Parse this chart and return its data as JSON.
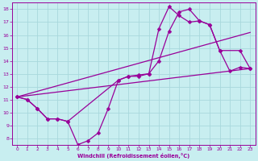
{
  "xlabel": "Windchill (Refroidissement éolien,°C)",
  "bg_color": "#c8eef0",
  "grid_color": "#a8d8dc",
  "line_color": "#990099",
  "xlim": [
    -0.5,
    23.5
  ],
  "ylim": [
    7.5,
    18.5
  ],
  "yticks": [
    8,
    9,
    10,
    11,
    12,
    13,
    14,
    15,
    16,
    17,
    18
  ],
  "xticks": [
    0,
    1,
    2,
    3,
    4,
    5,
    6,
    7,
    8,
    9,
    10,
    11,
    12,
    13,
    14,
    15,
    16,
    17,
    18,
    19,
    20,
    21,
    22,
    23
  ],
  "line1_x": [
    0,
    1,
    2,
    3,
    4,
    5,
    6,
    7,
    8,
    9,
    10,
    11,
    12,
    13,
    14,
    15,
    16,
    17,
    18,
    19,
    20,
    21,
    22,
    23
  ],
  "line1_y": [
    11.2,
    11.0,
    10.3,
    9.5,
    9.5,
    9.3,
    7.5,
    7.8,
    8.4,
    10.3,
    12.5,
    12.8,
    12.8,
    13.0,
    16.5,
    18.2,
    17.5,
    17.0,
    17.1,
    16.8,
    14.8,
    13.2,
    13.5,
    13.4
  ],
  "line2_x": [
    0,
    1,
    2,
    3,
    4,
    5,
    10,
    11,
    12,
    13,
    14,
    15,
    16,
    17,
    18,
    19,
    20,
    22,
    23
  ],
  "line2_y": [
    11.2,
    11.0,
    10.3,
    9.5,
    9.5,
    9.3,
    12.5,
    12.8,
    12.9,
    13.0,
    14.0,
    16.3,
    17.8,
    18.0,
    17.1,
    16.8,
    14.8,
    14.8,
    13.4
  ],
  "line3_x": [
    0,
    23
  ],
  "line3_y": [
    11.2,
    13.4
  ],
  "line4_x": [
    0,
    23
  ],
  "line4_y": [
    11.2,
    16.2
  ],
  "markersize": 2.5
}
